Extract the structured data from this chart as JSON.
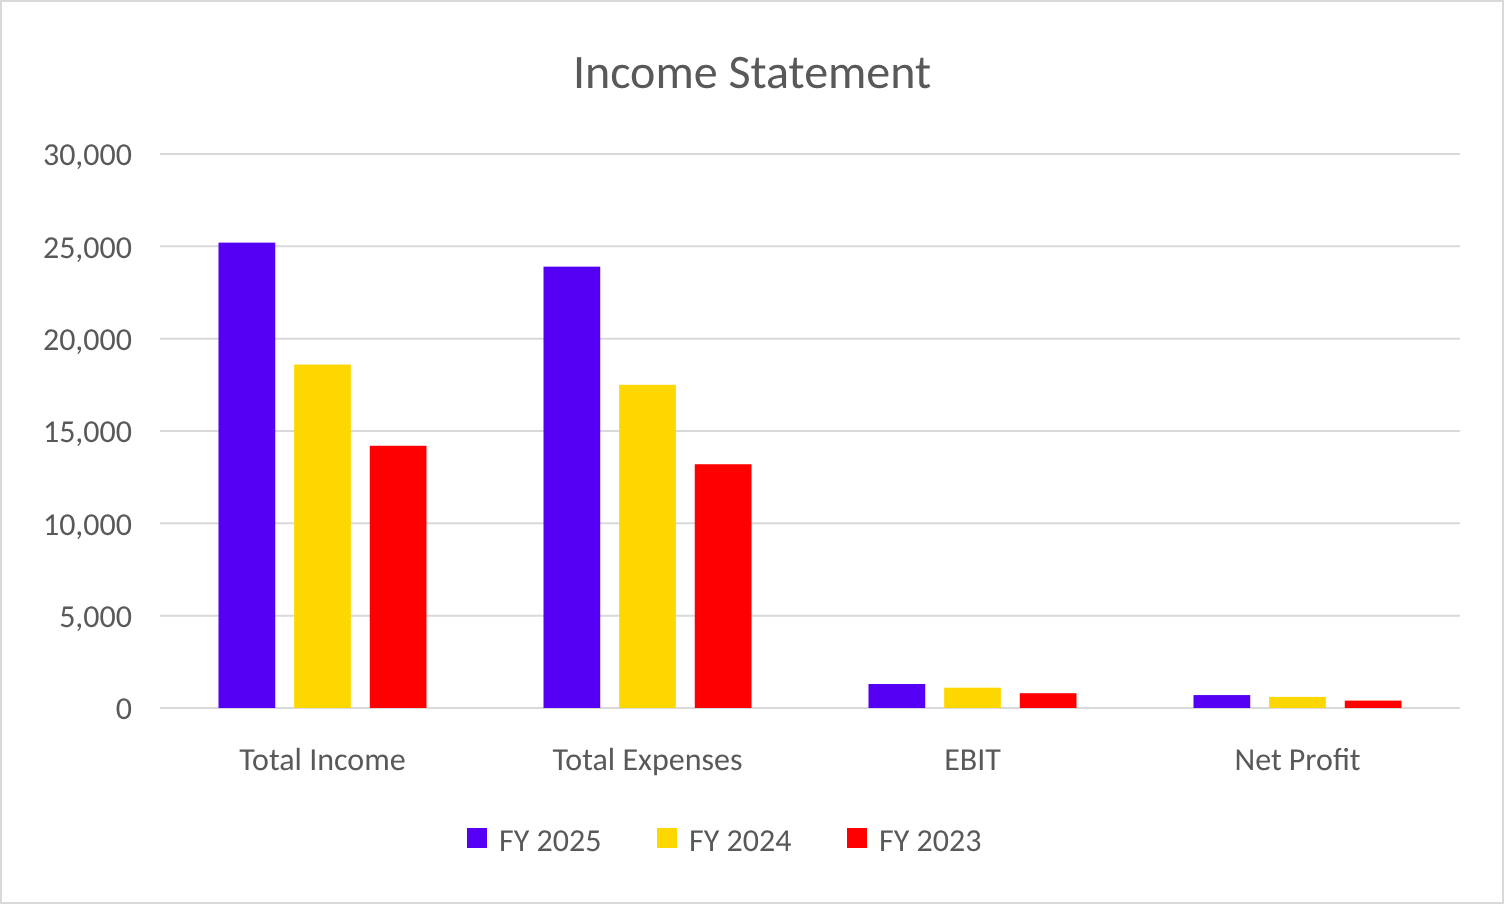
{
  "chart_data": {
    "type": "bar",
    "title": "Income Statement",
    "categories": [
      "Total Income",
      "Total Expenses",
      "EBIT",
      "Net Profit"
    ],
    "series": [
      {
        "name": "FY 2025",
        "color": "#5500f5",
        "values": [
          25200,
          23900,
          1300,
          700
        ]
      },
      {
        "name": "FY 2024",
        "color": "#ffd700",
        "values": [
          18600,
          17500,
          1100,
          600
        ]
      },
      {
        "name": "FY 2023",
        "color": "#ff0000",
        "values": [
          14200,
          13200,
          800,
          400
        ]
      }
    ],
    "ylim": [
      0,
      30000
    ],
    "yticks": [
      {
        "value": 0,
        "label": "0"
      },
      {
        "value": 5000,
        "label": "5,000"
      },
      {
        "value": 10000,
        "label": "10,000"
      },
      {
        "value": 15000,
        "label": "15,000"
      },
      {
        "value": 20000,
        "label": "20,000"
      },
      {
        "value": 25000,
        "label": "25,000"
      },
      {
        "value": 30000,
        "label": "30,000"
      }
    ],
    "grid": "y",
    "legend": "bottom"
  }
}
